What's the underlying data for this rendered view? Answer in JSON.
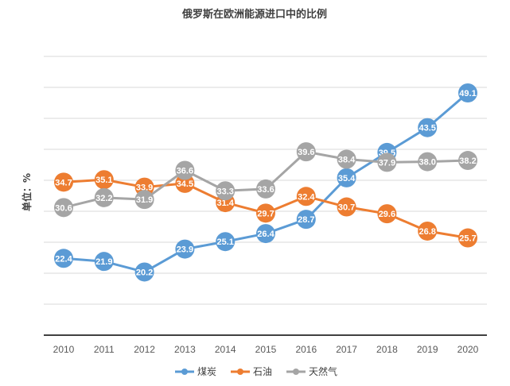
{
  "chart_data": {
    "type": "line",
    "title": "俄罗斯在欧洲能源进口中的比例",
    "ylabel": "单位：%",
    "xlabel": "",
    "categories": [
      "2010",
      "2011",
      "2012",
      "2013",
      "2014",
      "2015",
      "2016",
      "2017",
      "2018",
      "2019",
      "2020"
    ],
    "ylim": [
      10,
      55
    ],
    "grid": true,
    "legend_position": "bottom",
    "series": [
      {
        "name": "煤炭",
        "color": "#5B9BD5",
        "values": [
          22.4,
          21.9,
          20.2,
          23.9,
          25.1,
          26.4,
          28.7,
          35.4,
          39.5,
          43.5,
          49.1
        ]
      },
      {
        "name": "石油",
        "color": "#ED7D31",
        "values": [
          34.7,
          35.1,
          33.9,
          34.5,
          31.4,
          29.7,
          32.4,
          30.7,
          29.6,
          26.8,
          25.7
        ]
      },
      {
        "name": "天然气",
        "color": "#A5A5A5",
        "values": [
          30.6,
          32.2,
          31.9,
          36.6,
          33.3,
          33.6,
          39.6,
          38.4,
          37.9,
          38.0,
          38.2
        ]
      }
    ]
  }
}
